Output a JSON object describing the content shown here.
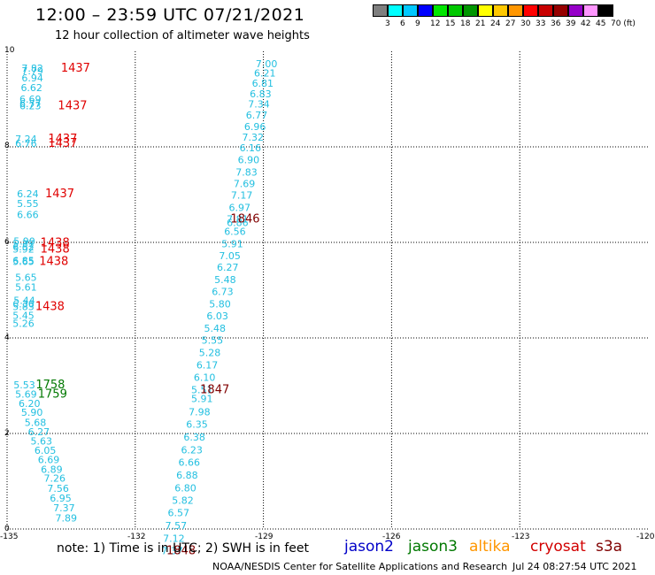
{
  "header": {
    "title": "12:00 – 23:59 UTC 07/21/2021",
    "subtitle": "12 hour collection of altimeter wave heights"
  },
  "legend": {
    "labels": [
      "3",
      "6",
      "9",
      "12",
      "15",
      "18",
      "21",
      "24",
      "27",
      "30",
      "33",
      "36",
      "39",
      "42",
      "45",
      "70 (ft)"
    ],
    "colors": [
      "#7f7f7f",
      "#00ffff",
      "#00c8ff",
      "#0000ff",
      "#00e600",
      "#00c800",
      "#009600",
      "#ffff00",
      "#ffc800",
      "#ff9600",
      "#ff0000",
      "#c80000",
      "#960000",
      "#9600c8",
      "#ff96ff",
      "#000000"
    ]
  },
  "axes": {
    "y_ticks": [
      "10",
      "8",
      "6",
      "4",
      "2",
      "0"
    ],
    "x_ticks": [
      "-135",
      "-132",
      "-129",
      "-126",
      "-123",
      "-120"
    ]
  },
  "note": "note: 1) Time is in UTC; 2) SWH is in feet",
  "satellites": [
    {
      "name": "jason2",
      "color": "#0000c8"
    },
    {
      "name": "jason3",
      "color": "#007800"
    },
    {
      "name": "altika",
      "color": "#ff9600"
    },
    {
      "name": "cryosat",
      "color": "#d20000"
    },
    {
      "name": "s3a",
      "color": "#800000"
    }
  ],
  "footer": {
    "credit": "NOAA/NESDIS Center for Satellite Applications and Research",
    "timestamp": "Jul 24 08:27:54 UTC 2021"
  },
  "map": {
    "x_range": [
      -135,
      -120
    ],
    "y_range": [
      0,
      10
    ],
    "wave_labels": [
      {
        "x": -134.66,
        "y": 9.57,
        "text": "7.82"
      },
      {
        "x": -134.66,
        "y": 9.52,
        "text": "7.79"
      },
      {
        "x": -134.66,
        "y": 9.37,
        "text": "6.94"
      },
      {
        "x": -134.68,
        "y": 9.17,
        "text": "6.62"
      },
      {
        "x": -134.71,
        "y": 8.93,
        "text": "6.69"
      },
      {
        "x": -134.71,
        "y": 8.83,
        "text": "6.77"
      },
      {
        "x": -134.71,
        "y": 8.79,
        "text": "6.23"
      },
      {
        "x": -134.81,
        "y": 8.09,
        "text": "7.24"
      },
      {
        "x": -134.81,
        "y": 8.0,
        "text": "6.76"
      },
      {
        "x": -134.77,
        "y": 6.94,
        "text": "6.24"
      },
      {
        "x": -134.77,
        "y": 6.74,
        "text": "5.55"
      },
      {
        "x": -134.77,
        "y": 6.51,
        "text": "6.66"
      },
      {
        "x": -134.85,
        "y": 5.95,
        "text": "5.90"
      },
      {
        "x": -134.87,
        "y": 5.9,
        "text": "5.37"
      },
      {
        "x": -134.87,
        "y": 5.83,
        "text": "6.52"
      },
      {
        "x": -134.87,
        "y": 5.79,
        "text": "5.92"
      },
      {
        "x": -134.87,
        "y": 5.55,
        "text": "6.85"
      },
      {
        "x": -134.87,
        "y": 5.53,
        "text": "5.65"
      },
      {
        "x": -134.81,
        "y": 5.19,
        "text": "5.65"
      },
      {
        "x": -134.81,
        "y": 4.99,
        "text": "5.61"
      },
      {
        "x": -134.85,
        "y": 4.71,
        "text": "5.44"
      },
      {
        "x": -134.87,
        "y": 4.64,
        "text": "6.36"
      },
      {
        "x": -134.87,
        "y": 4.58,
        "text": "5.83"
      },
      {
        "x": -134.87,
        "y": 4.4,
        "text": "5.45"
      },
      {
        "x": -134.87,
        "y": 4.23,
        "text": "5.26"
      },
      {
        "x": -134.85,
        "y": 2.94,
        "text": "5.53"
      },
      {
        "x": -134.81,
        "y": 2.75,
        "text": "5.69"
      },
      {
        "x": -134.73,
        "y": 2.56,
        "text": "6.20"
      },
      {
        "x": -134.67,
        "y": 2.37,
        "text": "5.90"
      },
      {
        "x": -134.59,
        "y": 2.16,
        "text": "5.68"
      },
      {
        "x": -134.51,
        "y": 1.96,
        "text": "6.27"
      },
      {
        "x": -134.45,
        "y": 1.77,
        "text": "5.63"
      },
      {
        "x": -134.36,
        "y": 1.57,
        "text": "6.05"
      },
      {
        "x": -134.28,
        "y": 1.38,
        "text": "6.69"
      },
      {
        "x": -134.21,
        "y": 1.18,
        "text": "6.89"
      },
      {
        "x": -134.14,
        "y": 0.99,
        "text": "7.26"
      },
      {
        "x": -134.06,
        "y": 0.78,
        "text": "7.56"
      },
      {
        "x": -134.0,
        "y": 0.57,
        "text": "6.95"
      },
      {
        "x": -133.92,
        "y": 0.37,
        "text": "7.37"
      },
      {
        "x": -133.87,
        "y": 0.16,
        "text": "7.89"
      },
      {
        "x": -129.18,
        "y": 9.67,
        "text": "7.00"
      },
      {
        "x": -129.22,
        "y": 9.47,
        "text": "6.21"
      },
      {
        "x": -129.27,
        "y": 9.26,
        "text": "6.81"
      },
      {
        "x": -129.32,
        "y": 9.04,
        "text": "6.83"
      },
      {
        "x": -129.36,
        "y": 8.82,
        "text": "7.34"
      },
      {
        "x": -129.41,
        "y": 8.59,
        "text": "6.77"
      },
      {
        "x": -129.45,
        "y": 8.35,
        "text": "6.96"
      },
      {
        "x": -129.5,
        "y": 8.13,
        "text": "7.32"
      },
      {
        "x": -129.56,
        "y": 7.91,
        "text": "6.16"
      },
      {
        "x": -129.6,
        "y": 7.66,
        "text": "6.90"
      },
      {
        "x": -129.65,
        "y": 7.4,
        "text": "7.83"
      },
      {
        "x": -129.7,
        "y": 7.16,
        "text": "7.69"
      },
      {
        "x": -129.76,
        "y": 6.92,
        "text": "7.17"
      },
      {
        "x": -129.81,
        "y": 6.66,
        "text": "6.97"
      },
      {
        "x": -129.86,
        "y": 6.42,
        "text": "7.81"
      },
      {
        "x": -129.86,
        "y": 6.34,
        "text": "6.86"
      },
      {
        "x": -129.92,
        "y": 6.16,
        "text": "6.56"
      },
      {
        "x": -129.98,
        "y": 5.9,
        "text": "5.91"
      },
      {
        "x": -130.04,
        "y": 5.65,
        "text": "7.05"
      },
      {
        "x": -130.09,
        "y": 5.41,
        "text": "6.27"
      },
      {
        "x": -130.15,
        "y": 5.15,
        "text": "5.48"
      },
      {
        "x": -130.21,
        "y": 4.9,
        "text": "6.73"
      },
      {
        "x": -130.27,
        "y": 4.64,
        "text": "5.80"
      },
      {
        "x": -130.33,
        "y": 4.39,
        "text": "6.03"
      },
      {
        "x": -130.39,
        "y": 4.13,
        "text": "5.48"
      },
      {
        "x": -130.45,
        "y": 3.88,
        "text": "5.55"
      },
      {
        "x": -130.51,
        "y": 3.62,
        "text": "5.28"
      },
      {
        "x": -130.57,
        "y": 3.36,
        "text": "6.17"
      },
      {
        "x": -130.63,
        "y": 3.1,
        "text": "6.10"
      },
      {
        "x": -130.69,
        "y": 2.84,
        "text": "5.51"
      },
      {
        "x": -130.69,
        "y": 2.66,
        "text": "5.91"
      },
      {
        "x": -130.75,
        "y": 2.38,
        "text": "7.98"
      },
      {
        "x": -130.81,
        "y": 2.12,
        "text": "6.35"
      },
      {
        "x": -130.87,
        "y": 1.85,
        "text": "6.38"
      },
      {
        "x": -130.93,
        "y": 1.58,
        "text": "6.23"
      },
      {
        "x": -130.99,
        "y": 1.32,
        "text": "6.66"
      },
      {
        "x": -131.04,
        "y": 1.06,
        "text": "6.88"
      },
      {
        "x": -131.08,
        "y": 0.79,
        "text": "6.80"
      },
      {
        "x": -131.14,
        "y": 0.53,
        "text": "5.82"
      },
      {
        "x": -131.24,
        "y": 0.27,
        "text": "6.57"
      },
      {
        "x": -131.3,
        "y": 0.0,
        "text": "7.57"
      },
      {
        "x": -131.35,
        "y": -0.27,
        "text": "7.12"
      },
      {
        "x": -131.39,
        "y": -0.53,
        "text": "7.37"
      }
    ],
    "time_labels": [
      {
        "x": -133.74,
        "y": 9.57,
        "text": "1437",
        "color": "#e00000"
      },
      {
        "x": -133.81,
        "y": 8.79,
        "text": "1437",
        "color": "#e00000"
      },
      {
        "x": -134.04,
        "y": 8.09,
        "text": "1437",
        "color": "#e00000"
      },
      {
        "x": -134.04,
        "y": 8.0,
        "text": "1437",
        "color": "#e00000"
      },
      {
        "x": -134.11,
        "y": 6.94,
        "text": "1437",
        "color": "#e00000"
      },
      {
        "x": -134.22,
        "y": 5.92,
        "text": "1438",
        "color": "#e00000"
      },
      {
        "x": -134.22,
        "y": 5.79,
        "text": "1438",
        "color": "#e00000"
      },
      {
        "x": -134.25,
        "y": 5.53,
        "text": "1438",
        "color": "#e00000"
      },
      {
        "x": -134.34,
        "y": 4.58,
        "text": "1438",
        "color": "#e00000"
      },
      {
        "x": -134.33,
        "y": 2.94,
        "text": "1758",
        "color": "#007800"
      },
      {
        "x": -134.28,
        "y": 2.75,
        "text": "1759",
        "color": "#007800"
      },
      {
        "x": -129.77,
        "y": 6.42,
        "text": "1846",
        "color": "#800000"
      },
      {
        "x": -130.48,
        "y": 2.84,
        "text": "1847",
        "color": "#800000"
      },
      {
        "x": -131.27,
        "y": -0.53,
        "text": "1848",
        "color": "#800000"
      }
    ]
  }
}
